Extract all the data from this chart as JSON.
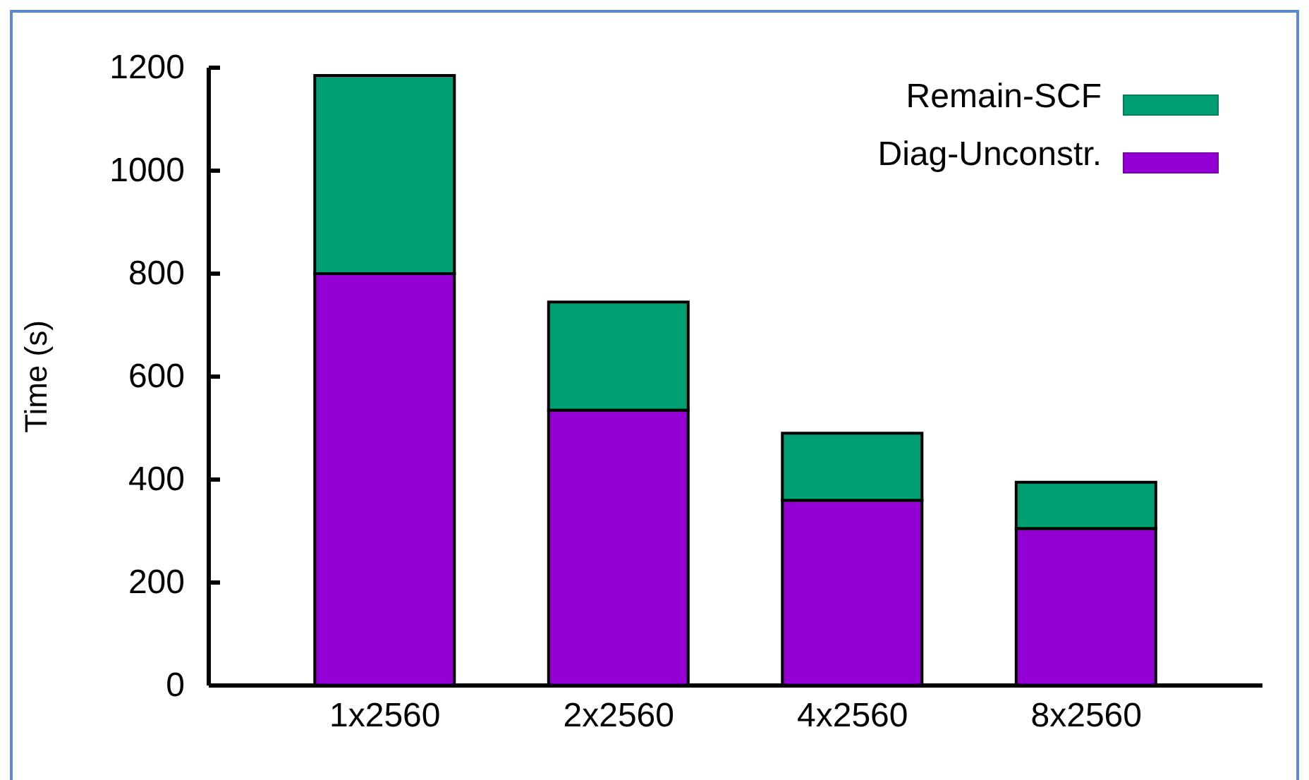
{
  "chart_data": {
    "type": "bar",
    "categories": [
      "1x2560",
      "2x2560",
      "4x2560",
      "8x2560"
    ],
    "series": [
      {
        "name": "Diag-Unconstr.",
        "color": "#9400d3",
        "values": [
          800,
          535,
          360,
          305
        ]
      },
      {
        "name": "Remain-SCF",
        "color": "#009e73",
        "values": [
          385,
          210,
          130,
          90
        ]
      }
    ],
    "stacked": true,
    "ylabel": "Time (s)",
    "ylim": [
      0,
      1200
    ],
    "yticks": [
      0,
      200,
      400,
      600,
      800,
      1000,
      1200
    ],
    "legend": "top right"
  }
}
